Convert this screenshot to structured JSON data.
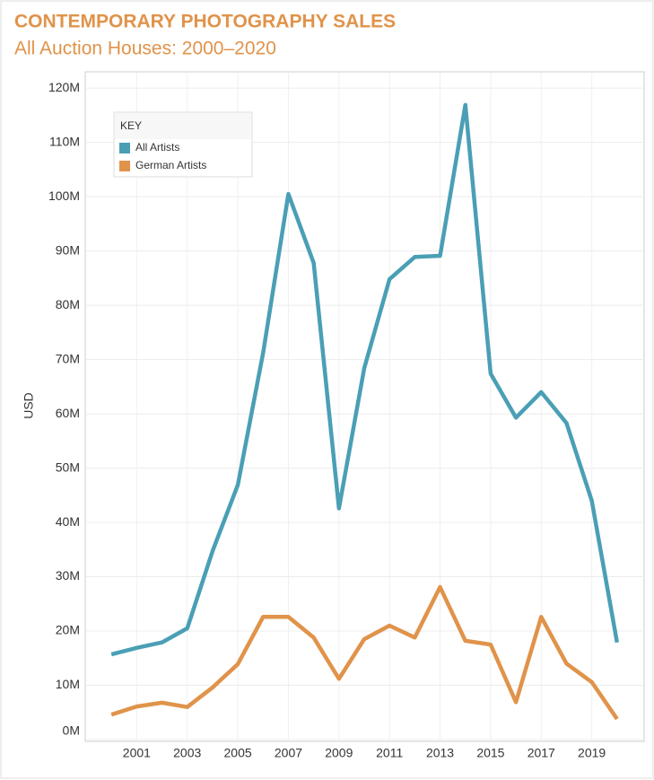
{
  "chart_data": {
    "type": "line",
    "title": "CONTEMPORARY PHOTOGRAPHY SALES",
    "subtitle": "All Auction Houses: 2000–2020",
    "y_label": "USD",
    "legend_title": "KEY",
    "legend": "top-left",
    "grid": true,
    "x": [
      2000,
      2001,
      2002,
      2003,
      2004,
      2005,
      2006,
      2007,
      2008,
      2009,
      2010,
      2011,
      2012,
      2013,
      2014,
      2015,
      2016,
      2017,
      2018,
      2019,
      2020
    ],
    "xlim": [
      1999,
      2021
    ],
    "xticks": [
      2001,
      2003,
      2005,
      2007,
      2009,
      2011,
      2013,
      2015,
      2017,
      2019
    ],
    "ylim": [
      0,
      123
    ],
    "yticks": [
      {
        "value": 0,
        "label": "0M"
      },
      {
        "value": 10,
        "label": "10M"
      },
      {
        "value": 20,
        "label": "20M"
      },
      {
        "value": 30,
        "label": "30M"
      },
      {
        "value": 40,
        "label": "40M"
      },
      {
        "value": 50,
        "label": "50M"
      },
      {
        "value": 60,
        "label": "60M"
      },
      {
        "value": 70,
        "label": "70M"
      },
      {
        "value": 80,
        "label": "80M"
      },
      {
        "value": 90,
        "label": "90M"
      },
      {
        "value": 100,
        "label": "100M"
      },
      {
        "value": 110,
        "label": "110M"
      },
      {
        "value": 120,
        "label": "120M"
      }
    ],
    "series": [
      {
        "name": "All Artists",
        "color": "#4a9fb5",
        "values": [
          15.7,
          16.9,
          17.9,
          20.5,
          34.7,
          46.9,
          71.2,
          100.5,
          87.8,
          42.6,
          68.4,
          84.8,
          88.9,
          89.1,
          116.9,
          67.4,
          59.3,
          64.0,
          58.3,
          44.0,
          17.9
        ]
      },
      {
        "name": "German Artists",
        "color": "#e0934a",
        "values": [
          4.6,
          6.1,
          6.8,
          6.0,
          9.6,
          13.9,
          22.6,
          22.6,
          18.8,
          11.2,
          18.5,
          21.0,
          18.8,
          28.1,
          18.2,
          17.5,
          6.9,
          22.6,
          14.0,
          10.6,
          3.8
        ]
      }
    ]
  }
}
